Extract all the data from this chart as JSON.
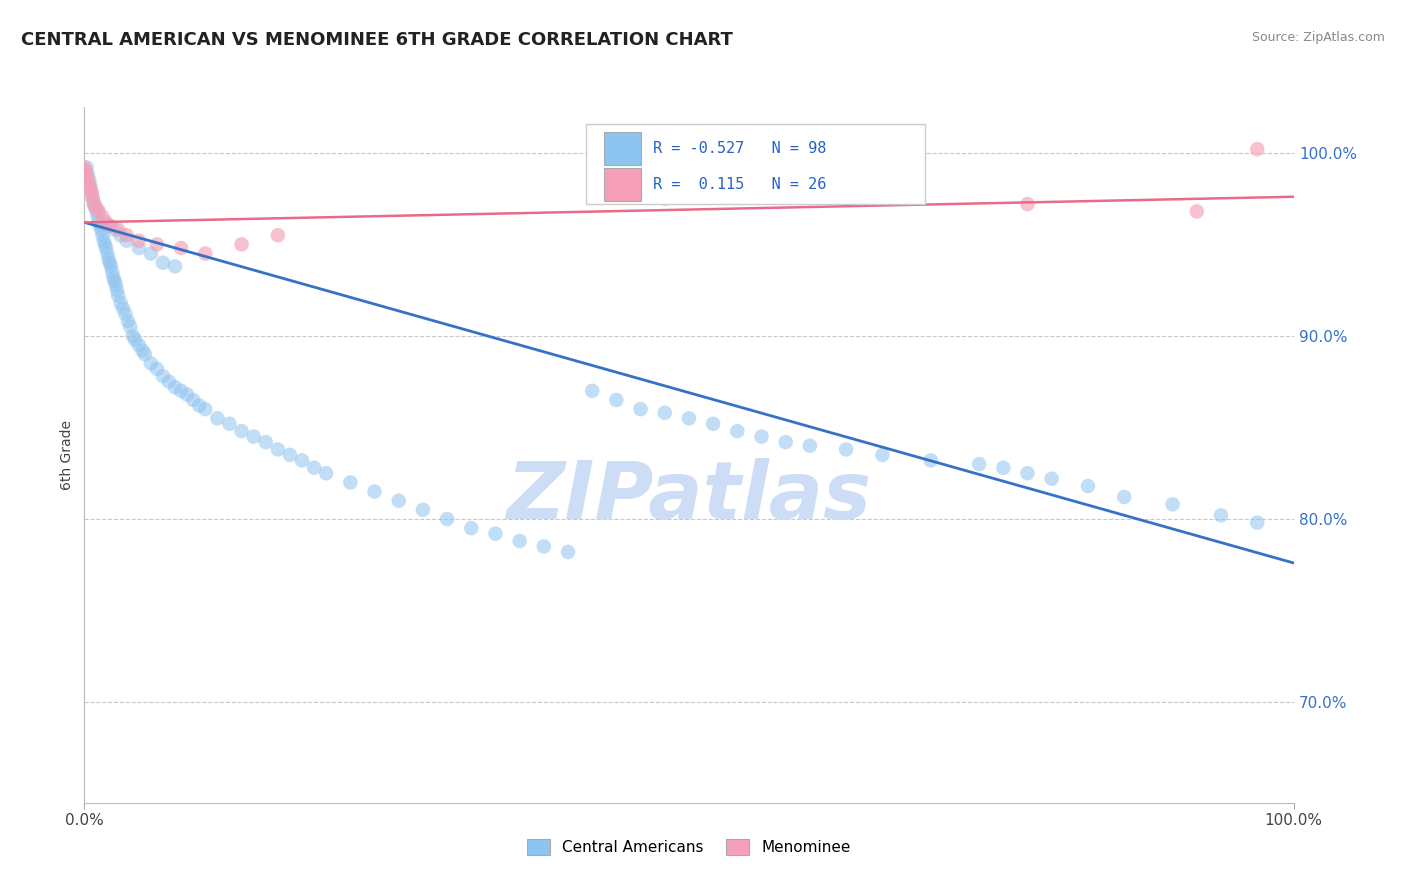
{
  "title": "CENTRAL AMERICAN VS MENOMINEE 6TH GRADE CORRELATION CHART",
  "source_text": "Source: ZipAtlas.com",
  "ylabel": "6th Grade",
  "xlim": [
    0.0,
    1.0
  ],
  "ylim": [
    0.645,
    1.025
  ],
  "ytick_labels": [
    "70.0%",
    "80.0%",
    "90.0%",
    "100.0%"
  ],
  "ytick_values": [
    0.7,
    0.8,
    0.9,
    1.0
  ],
  "xtick_labels": [
    "0.0%",
    "100.0%"
  ],
  "xtick_values": [
    0.0,
    1.0
  ],
  "blue_scatter_x": [
    0.0,
    0.002,
    0.003,
    0.004,
    0.005,
    0.006,
    0.007,
    0.008,
    0.009,
    0.01,
    0.011,
    0.012,
    0.013,
    0.014,
    0.015,
    0.016,
    0.017,
    0.018,
    0.019,
    0.02,
    0.021,
    0.022,
    0.023,
    0.024,
    0.025,
    0.026,
    0.027,
    0.028,
    0.03,
    0.032,
    0.034,
    0.036,
    0.038,
    0.04,
    0.042,
    0.045,
    0.048,
    0.05,
    0.055,
    0.06,
    0.065,
    0.07,
    0.075,
    0.08,
    0.085,
    0.09,
    0.095,
    0.1,
    0.11,
    0.12,
    0.13,
    0.14,
    0.15,
    0.16,
    0.17,
    0.18,
    0.19,
    0.2,
    0.22,
    0.24,
    0.26,
    0.28,
    0.3,
    0.32,
    0.34,
    0.36,
    0.38,
    0.4,
    0.42,
    0.44,
    0.46,
    0.48,
    0.5,
    0.52,
    0.54,
    0.56,
    0.58,
    0.6,
    0.63,
    0.66,
    0.7,
    0.74,
    0.76,
    0.78,
    0.8,
    0.83,
    0.86,
    0.9,
    0.94,
    0.97,
    0.02,
    0.025,
    0.03,
    0.035,
    0.045,
    0.055,
    0.065,
    0.075
  ],
  "blue_scatter_y": [
    0.99,
    0.992,
    0.988,
    0.985,
    0.982,
    0.978,
    0.975,
    0.972,
    0.97,
    0.968,
    0.965,
    0.962,
    0.96,
    0.958,
    0.955,
    0.952,
    0.95,
    0.948,
    0.945,
    0.942,
    0.94,
    0.938,
    0.935,
    0.932,
    0.93,
    0.928,
    0.925,
    0.922,
    0.918,
    0.915,
    0.912,
    0.908,
    0.905,
    0.9,
    0.898,
    0.895,
    0.892,
    0.89,
    0.885,
    0.882,
    0.878,
    0.875,
    0.872,
    0.87,
    0.868,
    0.865,
    0.862,
    0.86,
    0.855,
    0.852,
    0.848,
    0.845,
    0.842,
    0.838,
    0.835,
    0.832,
    0.828,
    0.825,
    0.82,
    0.815,
    0.81,
    0.805,
    0.8,
    0.795,
    0.792,
    0.788,
    0.785,
    0.782,
    0.87,
    0.865,
    0.86,
    0.858,
    0.855,
    0.852,
    0.848,
    0.845,
    0.842,
    0.84,
    0.838,
    0.835,
    0.832,
    0.83,
    0.828,
    0.825,
    0.822,
    0.818,
    0.812,
    0.808,
    0.802,
    0.798,
    0.96,
    0.958,
    0.955,
    0.952,
    0.948,
    0.945,
    0.94,
    0.938
  ],
  "pink_scatter_x": [
    0.0,
    0.001,
    0.002,
    0.003,
    0.004,
    0.005,
    0.006,
    0.007,
    0.008,
    0.01,
    0.012,
    0.015,
    0.018,
    0.022,
    0.028,
    0.035,
    0.045,
    0.06,
    0.08,
    0.1,
    0.13,
    0.16,
    0.48,
    0.78,
    0.92,
    0.97
  ],
  "pink_scatter_y": [
    0.992,
    0.99,
    0.988,
    0.985,
    0.982,
    0.98,
    0.978,
    0.975,
    0.972,
    0.97,
    0.968,
    0.965,
    0.962,
    0.96,
    0.958,
    0.955,
    0.952,
    0.95,
    0.948,
    0.945,
    0.95,
    0.955,
    0.975,
    0.972,
    0.968,
    1.002
  ],
  "blue_line_x": [
    0.0,
    1.0
  ],
  "blue_line_y": [
    0.962,
    0.776
  ],
  "pink_line_x": [
    0.0,
    1.0
  ],
  "pink_line_y": [
    0.962,
    0.976
  ],
  "legend_R_blue": "-0.527",
  "legend_N_blue": "98",
  "legend_R_pink": "0.115",
  "legend_N_pink": "26",
  "blue_color": "#8ec4f0",
  "pink_color": "#f5a0b8",
  "blue_line_color": "#3572c6",
  "pink_line_color": "#e86a88",
  "grid_color": "#c8c8c8",
  "background_color": "#ffffff",
  "watermark_text": "ZIPatlas",
  "watermark_color": "#ccddf5"
}
